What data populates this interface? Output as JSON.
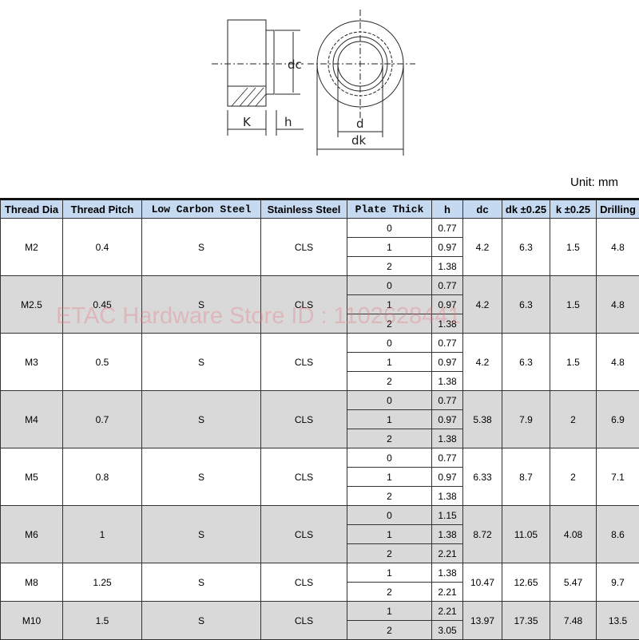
{
  "drawing": {
    "labels": {
      "dc": "dc",
      "k": "K",
      "h": "h",
      "d": "d",
      "dk": "dk"
    }
  },
  "unit": "Unit: mm",
  "headers": [
    "Thread Dia",
    "Thread Pitch",
    "Low Carbon Steel",
    "Stainless Steel",
    "Plate Thick",
    "h",
    "dc",
    "dk ±0.25",
    "k ±0.25",
    "Drilling"
  ],
  "rows": [
    {
      "dia": "M2",
      "pitch": "0.4",
      "lcs": "S",
      "ss": "CLS",
      "sub": [
        [
          "0",
          "0.77"
        ],
        [
          "1",
          "0.97"
        ],
        [
          "2",
          "1.38"
        ]
      ],
      "dc": "4.2",
      "dk": "6.3",
      "k": "1.5",
      "drill": "4.8"
    },
    {
      "dia": "M2.5",
      "pitch": "0.45",
      "lcs": "S",
      "ss": "CLS",
      "sub": [
        [
          "0",
          "0.77"
        ],
        [
          "1",
          "0.97"
        ],
        [
          "2",
          "1.38"
        ]
      ],
      "dc": "4.2",
      "dk": "6.3",
      "k": "1.5",
      "drill": "4.8"
    },
    {
      "dia": "M3",
      "pitch": "0.5",
      "lcs": "S",
      "ss": "CLS",
      "sub": [
        [
          "0",
          "0.77"
        ],
        [
          "1",
          "0.97"
        ],
        [
          "2",
          "1.38"
        ]
      ],
      "dc": "4.2",
      "dk": "6.3",
      "k": "1.5",
      "drill": "4.8"
    },
    {
      "dia": "M4",
      "pitch": "0.7",
      "lcs": "S",
      "ss": "CLS",
      "sub": [
        [
          "0",
          "0.77"
        ],
        [
          "1",
          "0.97"
        ],
        [
          "2",
          "1.38"
        ]
      ],
      "dc": "5.38",
      "dk": "7.9",
      "k": "2",
      "drill": "6.9"
    },
    {
      "dia": "M5",
      "pitch": "0.8",
      "lcs": "S",
      "ss": "CLS",
      "sub": [
        [
          "0",
          "0.77"
        ],
        [
          "1",
          "0.97"
        ],
        [
          "2",
          "1.38"
        ]
      ],
      "dc": "6.33",
      "dk": "8.7",
      "k": "2",
      "drill": "7.1"
    },
    {
      "dia": "M6",
      "pitch": "1",
      "lcs": "S",
      "ss": "CLS",
      "sub": [
        [
          "0",
          "1.15"
        ],
        [
          "1",
          "1.38"
        ],
        [
          "2",
          "2.21"
        ]
      ],
      "dc": "8.72",
      "dk": "11.05",
      "k": "4.08",
      "drill": "8.6"
    },
    {
      "dia": "M8",
      "pitch": "1.25",
      "lcs": "S",
      "ss": "CLS",
      "sub": [
        [
          "1",
          "1.38"
        ],
        [
          "2",
          "2.21"
        ]
      ],
      "dc": "10.47",
      "dk": "12.65",
      "k": "5.47",
      "drill": "9.7"
    },
    {
      "dia": "M10",
      "pitch": "1.5",
      "lcs": "S",
      "ss": "CLS",
      "sub": [
        [
          "1",
          "2.21"
        ],
        [
          "2",
          "3.05"
        ]
      ],
      "dc": "13.97",
      "dk": "17.35",
      "k": "7.48",
      "drill": "13.5"
    }
  ],
  "watermark": "ETAC Hardware Store ID : 1102628441"
}
